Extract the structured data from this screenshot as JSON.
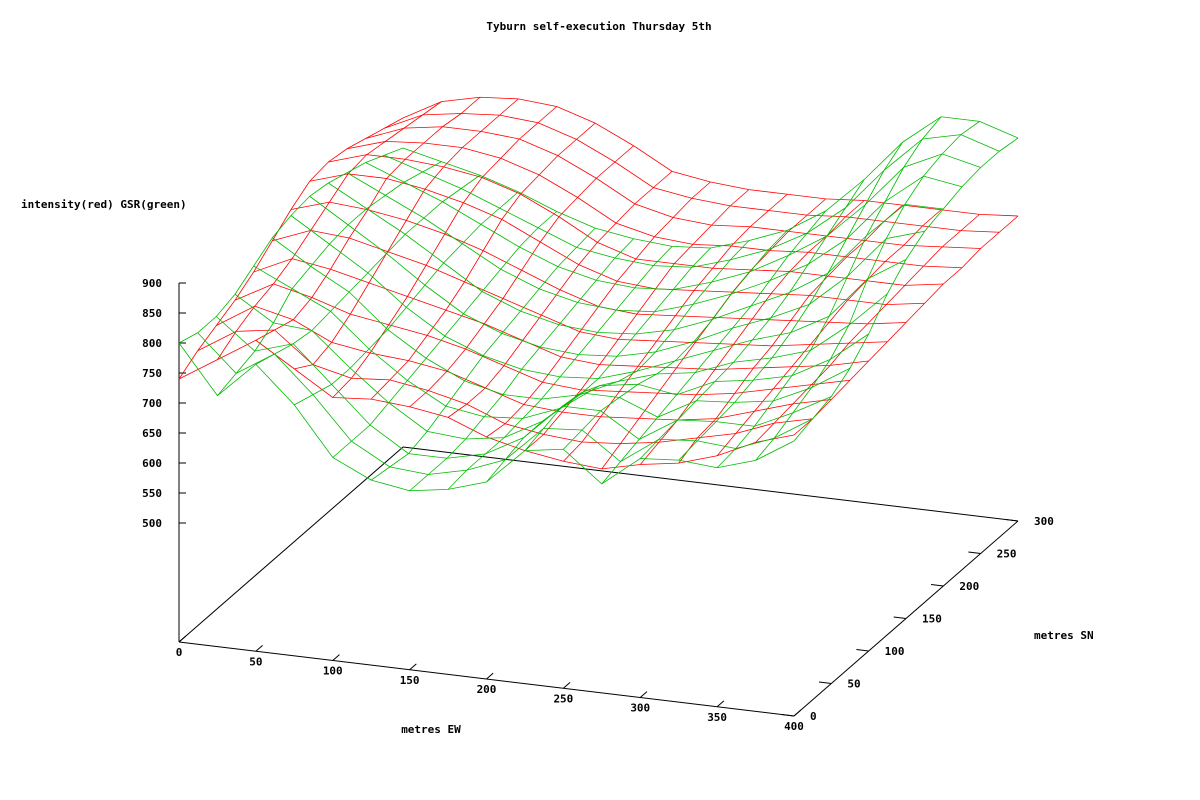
{
  "chart_data": {
    "type": "surface3d",
    "title": "Tyburn self-execution Thursday 5th",
    "zlabel": "intensity(red) GSR(green)",
    "xlabel": "metres EW",
    "ylabel": "metres SN",
    "xlim": [
      0,
      400
    ],
    "ylim": [
      0,
      300
    ],
    "zlim": [
      500,
      900
    ],
    "x_ticks": [
      "0",
      "50",
      "100",
      "150",
      "200",
      "250",
      "300",
      "350",
      "400"
    ],
    "y_ticks": [
      "0",
      "50",
      "100",
      "150",
      "200",
      "250",
      "300"
    ],
    "z_ticks": [
      "500",
      "550",
      "600",
      "650",
      "700",
      "750",
      "800",
      "850",
      "900"
    ],
    "grid_x": [
      0,
      25,
      50,
      75,
      100,
      125,
      150,
      175,
      200,
      225,
      250,
      275,
      300,
      325,
      350,
      375,
      400
    ],
    "grid_y": [
      0,
      25,
      50,
      75,
      100,
      125,
      150,
      175,
      200,
      225,
      250,
      275,
      300
    ],
    "series": [
      {
        "label": "intensity",
        "color": "#ff0000",
        "z": [
          [
            740,
            780,
            820,
            780,
            740,
            745,
            740,
            730,
            705,
            690,
            680,
            675,
            690,
            700,
            720,
            750,
            770
          ],
          [
            760,
            800,
            810,
            760,
            745,
            750,
            740,
            725,
            700,
            690,
            685,
            690,
            700,
            715,
            730,
            755,
            770
          ],
          [
            775,
            815,
            800,
            770,
            760,
            755,
            745,
            725,
            705,
            700,
            700,
            705,
            710,
            720,
            740,
            760,
            775
          ],
          [
            790,
            825,
            810,
            790,
            780,
            770,
            755,
            735,
            715,
            710,
            715,
            720,
            725,
            735,
            750,
            765,
            780
          ],
          [
            810,
            840,
            830,
            815,
            800,
            785,
            770,
            750,
            730,
            725,
            730,
            735,
            740,
            750,
            760,
            770,
            785
          ],
          [
            835,
            860,
            855,
            840,
            825,
            805,
            785,
            765,
            745,
            740,
            745,
            750,
            755,
            760,
            770,
            780,
            790
          ],
          [
            860,
            880,
            875,
            865,
            850,
            830,
            805,
            780,
            760,
            755,
            760,
            765,
            770,
            775,
            780,
            785,
            795
          ],
          [
            880,
            900,
            900,
            890,
            875,
            855,
            825,
            795,
            775,
            770,
            775,
            780,
            785,
            790,
            790,
            790,
            800
          ],
          [
            885,
            905,
            905,
            900,
            890,
            870,
            840,
            805,
            785,
            785,
            785,
            790,
            795,
            795,
            795,
            795,
            805
          ],
          [
            880,
            900,
            905,
            905,
            895,
            875,
            845,
            810,
            795,
            790,
            795,
            795,
            800,
            800,
            800,
            800,
            805
          ],
          [
            870,
            895,
            905,
            905,
            900,
            880,
            850,
            815,
            800,
            795,
            800,
            800,
            800,
            800,
            800,
            805,
            810
          ],
          [
            860,
            890,
            900,
            905,
            900,
            880,
            850,
            815,
            805,
            800,
            800,
            800,
            805,
            805,
            805,
            805,
            810
          ],
          [
            850,
            885,
            900,
            905,
            900,
            880,
            850,
            815,
            805,
            800,
            800,
            800,
            805,
            805,
            805,
            805,
            810
          ]
        ]
      },
      {
        "label": "GSR",
        "color": "#00bb00",
        "z": [
          [
            800,
            720,
            780,
            720,
            640,
            610,
            600,
            610,
            630,
            690,
            700,
            650,
            700,
            705,
            700,
            720,
            760
          ],
          [
            790,
            730,
            770,
            710,
            640,
            605,
            600,
            615,
            640,
            700,
            705,
            660,
            705,
            710,
            705,
            730,
            770
          ],
          [
            790,
            740,
            760,
            700,
            640,
            600,
            600,
            615,
            650,
            710,
            710,
            670,
            710,
            715,
            715,
            745,
            780
          ],
          [
            800,
            760,
            755,
            700,
            650,
            610,
            605,
            615,
            650,
            705,
            705,
            680,
            715,
            720,
            730,
            760,
            800
          ],
          [
            820,
            790,
            760,
            705,
            660,
            625,
            615,
            620,
            645,
            690,
            700,
            690,
            720,
            730,
            745,
            780,
            830
          ],
          [
            840,
            800,
            765,
            710,
            670,
            640,
            625,
            625,
            640,
            670,
            690,
            700,
            725,
            740,
            760,
            810,
            870
          ],
          [
            850,
            810,
            770,
            720,
            680,
            655,
            640,
            635,
            640,
            660,
            685,
            710,
            735,
            755,
            790,
            860,
            900
          ],
          [
            855,
            815,
            775,
            730,
            690,
            665,
            650,
            645,
            650,
            665,
            690,
            720,
            745,
            775,
            830,
            900,
            920
          ],
          [
            850,
            815,
            780,
            740,
            700,
            675,
            660,
            655,
            660,
            675,
            700,
            730,
            760,
            800,
            870,
            930,
            930
          ],
          [
            840,
            810,
            780,
            745,
            710,
            685,
            670,
            665,
            670,
            690,
            715,
            745,
            780,
            830,
            900,
            950,
            940
          ],
          [
            830,
            805,
            780,
            750,
            720,
            695,
            680,
            675,
            680,
            700,
            725,
            760,
            800,
            860,
            930,
            960,
            945
          ],
          [
            815,
            795,
            775,
            750,
            725,
            700,
            690,
            685,
            690,
            710,
            735,
            770,
            820,
            890,
            950,
            965,
            945
          ],
          [
            800,
            785,
            770,
            750,
            725,
            705,
            695,
            690,
            695,
            715,
            740,
            780,
            840,
            910,
            960,
            960,
            940
          ]
        ]
      }
    ]
  }
}
